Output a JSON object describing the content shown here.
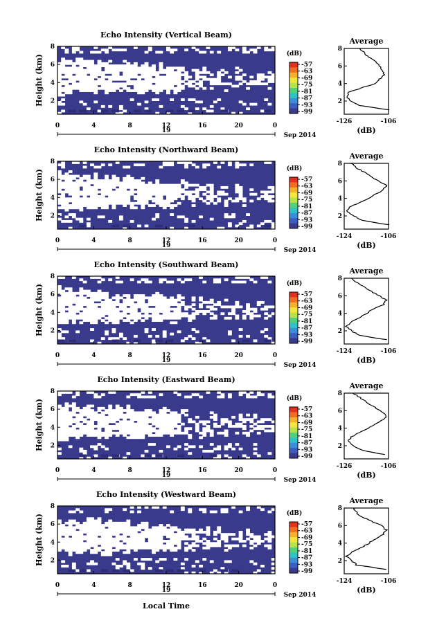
{
  "common": {
    "ylabel": "Height (km)",
    "avg_title": "Average",
    "avg_xlabel": "(dB)",
    "colorbar_unit": "(dB)",
    "date_label": "Sep 2014",
    "day_label": "19",
    "xlabel": "Local Time",
    "colorbar_ticks": [
      "-57",
      "-63",
      "-69",
      "-75",
      "-81",
      "-87",
      "-93",
      "-99"
    ],
    "colorbar_colors": [
      "#e0301e",
      "#f26d22",
      "#f7b02a",
      "#f4e63a",
      "#b6e24a",
      "#55d07a",
      "#2fc3c8",
      "#3a8fd8",
      "#3b5cc0",
      "#3a3a8c"
    ],
    "field_color": "#3a3a8c",
    "field_dark_color": "#2c2c78"
  },
  "chart_data": [
    {
      "type": "heatmap",
      "title": "Echo Intensity (Vertical Beam)",
      "x_ticks": [
        "0",
        "4",
        "8",
        "12",
        "16",
        "20",
        "0"
      ],
      "y_ticks": [
        "2",
        "4",
        "6",
        "8"
      ],
      "ylim": [
        0.5,
        8
      ],
      "profile": {
        "xlim": [
          -126,
          -106
        ],
        "x_ticks": [
          "-126",
          "-106"
        ],
        "height": [
          1.0,
          1.5,
          2.0,
          2.5,
          3.0,
          3.5,
          4.0,
          4.5,
          5.0,
          5.5,
          6.0,
          6.5,
          7.0,
          7.5,
          8.0
        ],
        "value": [
          -106,
          -119,
          -123,
          -125,
          -124,
          -118,
          -112,
          -110,
          -108,
          -109,
          -110,
          -112,
          -115,
          -117,
          -119
        ]
      }
    },
    {
      "type": "heatmap",
      "title": "Echo Intensity (Northward Beam)",
      "x_ticks": [
        "0",
        "4",
        "8",
        "12",
        "16",
        "20",
        "0"
      ],
      "y_ticks": [
        "2",
        "4",
        "6",
        "8"
      ],
      "ylim": [
        0.5,
        8
      ],
      "profile": {
        "xlim": [
          -124,
          -106
        ],
        "x_ticks": [
          "-124",
          "-106"
        ],
        "height": [
          1.0,
          1.5,
          2.0,
          2.5,
          3.0,
          3.5,
          4.0,
          4.5,
          5.0,
          5.5,
          6.0,
          6.5,
          7.0,
          7.5,
          8.0
        ],
        "value": [
          -106,
          -117,
          -120,
          -123,
          -122,
          -118,
          -114,
          -111,
          -108,
          -107,
          -110,
          -113,
          -116,
          -119,
          -121
        ]
      }
    },
    {
      "type": "heatmap",
      "title": "Echo Intensity (Southward Beam)",
      "x_ticks": [
        "0",
        "4",
        "8",
        "12",
        "16",
        "20",
        "0"
      ],
      "y_ticks": [
        "2",
        "4",
        "6",
        "8"
      ],
      "ylim": [
        0.5,
        8
      ],
      "profile": {
        "xlim": [
          -124,
          -106
        ],
        "x_ticks": [
          "-124",
          "-106"
        ],
        "height": [
          1.0,
          1.5,
          2.0,
          2.5,
          3.0,
          3.5,
          4.0,
          4.5,
          5.0,
          5.5,
          6.0,
          6.5,
          7.0,
          7.5,
          8.0
        ],
        "value": [
          -107,
          -118,
          -121,
          -123,
          -121,
          -118,
          -115,
          -112,
          -108,
          -107,
          -110,
          -113,
          -116,
          -119,
          -121
        ]
      }
    },
    {
      "type": "heatmap",
      "title": "Echo Intensity (Eastward Beam)",
      "x_ticks": [
        "0",
        "4",
        "8",
        "12",
        "16",
        "20",
        "0"
      ],
      "y_ticks": [
        "2",
        "4",
        "6",
        "8"
      ],
      "ylim": [
        0.5,
        8
      ],
      "profile": {
        "xlim": [
          -126,
          -106
        ],
        "x_ticks": [
          "-126",
          "-106"
        ],
        "height": [
          1.0,
          1.5,
          2.0,
          2.5,
          3.0,
          3.5,
          4.0,
          4.5,
          5.0,
          5.5,
          6.0,
          6.5,
          7.0,
          7.5,
          8.0
        ],
        "value": [
          -108,
          -118,
          -122,
          -124,
          -123,
          -119,
          -115,
          -112,
          -108,
          -107,
          -110,
          -113,
          -116,
          -119,
          -122
        ]
      }
    },
    {
      "type": "heatmap",
      "title": "Echo Intensity (Westward Beam)",
      "x_ticks": [
        "0",
        "4",
        "8",
        "12",
        "16",
        "20",
        "0"
      ],
      "y_ticks": [
        "2",
        "4",
        "6",
        "8"
      ],
      "ylim": [
        0.5,
        8
      ],
      "profile": {
        "xlim": [
          -124,
          -106
        ],
        "x_ticks": [
          "-124",
          "-106"
        ],
        "height": [
          1.0,
          1.5,
          2.0,
          2.5,
          3.0,
          3.5,
          4.0,
          4.5,
          5.0,
          5.5,
          6.0,
          6.5,
          7.0,
          7.5,
          8.0
        ],
        "value": [
          -107,
          -119,
          -121,
          -123,
          -121,
          -117,
          -114,
          -111,
          -108,
          -107,
          -109,
          -113,
          -117,
          -119,
          -120
        ]
      }
    }
  ]
}
